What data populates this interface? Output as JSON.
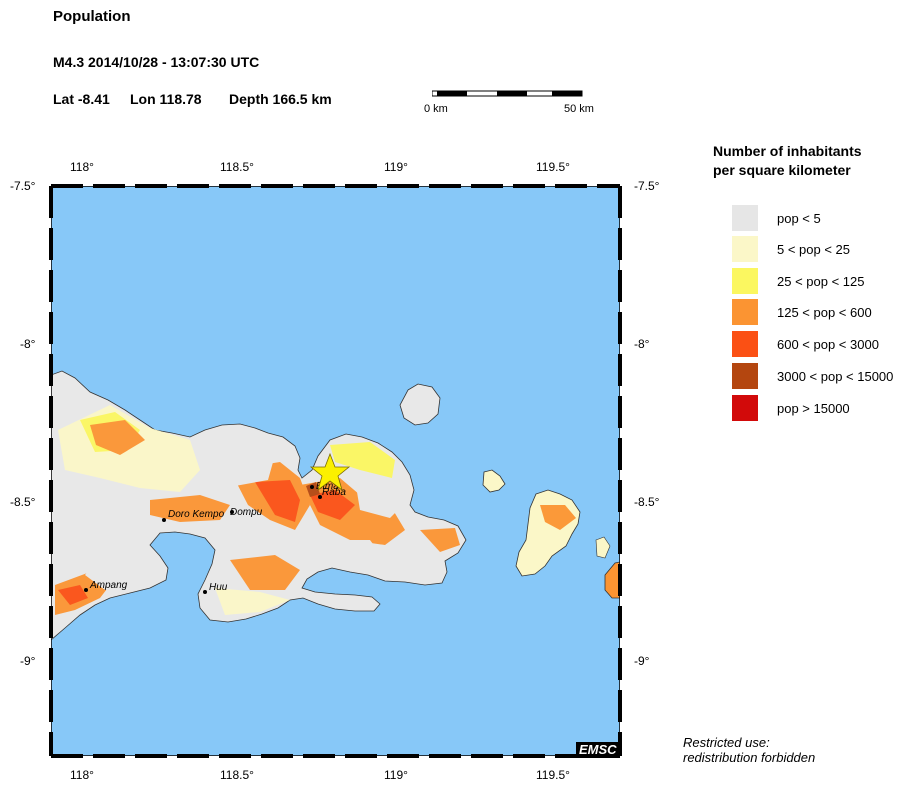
{
  "header": {
    "title": "Population",
    "event": "M4.3  2014/10/28 - 13:07:30 UTC",
    "lat": "Lat -8.41",
    "lon": "Lon 118.78",
    "depth": "Depth 166.5 km"
  },
  "scalebar": {
    "start_label": "0 km",
    "end_label": "50 km"
  },
  "axes": {
    "lon_labels": [
      "118°",
      "118.5°",
      "119°",
      "119.5°"
    ],
    "lat_labels": [
      "-7.5°",
      "-8°",
      "-8.5°",
      "-9°"
    ]
  },
  "legend": {
    "title_line1": "Number of inhabitants",
    "title_line2": "per square kilometer",
    "items": [
      {
        "label": "pop < 5",
        "color": "#e6e6e6"
      },
      {
        "label": "5 < pop < 25",
        "color": "#fbf7c8"
      },
      {
        "label": "25 < pop < 125",
        "color": "#fbf760"
      },
      {
        "label": "125 < pop < 600",
        "color": "#fb9432"
      },
      {
        "label": "600 < pop < 3000",
        "color": "#fb5014"
      },
      {
        "label": "3000 < pop < 15000",
        "color": "#b4460f"
      },
      {
        "label": "pop > 15000",
        "color": "#d20a0a"
      }
    ]
  },
  "map": {
    "sea_color": "#87c8f8",
    "towns": [
      "Bima",
      "Raba",
      "Dompu",
      "Doro Kempo",
      "Ampang",
      "Huu"
    ],
    "epicenter_icon": "star-icon"
  },
  "notice": {
    "line1": "Restricted use:",
    "line2": "redistribution forbidden"
  },
  "badge": "EMSC"
}
